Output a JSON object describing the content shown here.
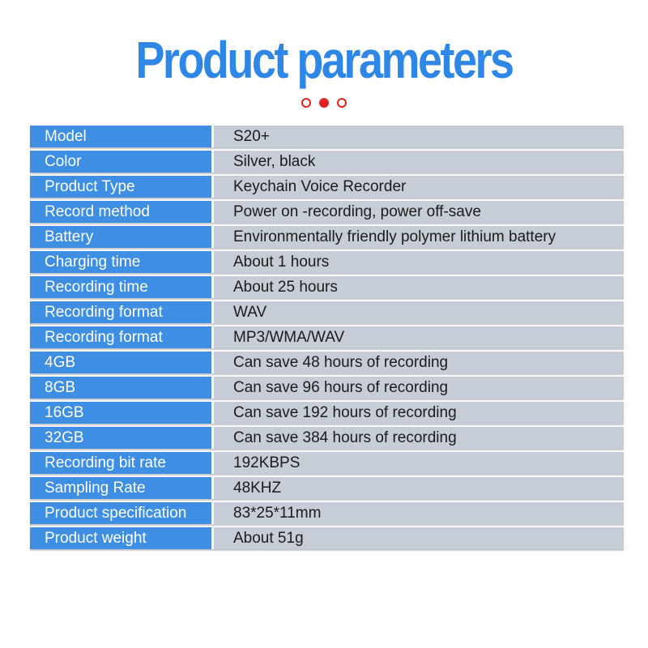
{
  "page": {
    "background": "#ffffff"
  },
  "header": {
    "title": "Product parameters",
    "title_color": "#2e87e6",
    "dots": {
      "color": "#e02222",
      "items": [
        "outline",
        "filled",
        "outline"
      ]
    }
  },
  "table": {
    "label_bg": "#3e8ee4",
    "label_color": "#ffffff",
    "value_bg": "#c7cdd7",
    "value_color": "#1b1b1b",
    "rows": [
      {
        "label": "Model",
        "value": "S20+"
      },
      {
        "label": "Color",
        "value": "Silver, black"
      },
      {
        "label": "Product Type",
        "value": "Keychain Voice Recorder"
      },
      {
        "label": "Record method",
        "value": "Power on -recording, power off-save"
      },
      {
        "label": "Battery",
        "value": "Environmentally friendly polymer lithium battery"
      },
      {
        "label": "Charging time",
        "value": "About 1 hours"
      },
      {
        "label": "Recording time",
        "value": "About 25 hours"
      },
      {
        "label": "Recording format",
        "value": "WAV"
      },
      {
        "label": "Recording format",
        "value": "MP3/WMA/WAV"
      },
      {
        "label": "4GB",
        "value": "Can save 48 hours of recording"
      },
      {
        "label": "8GB",
        "value": "Can save 96 hours of recording"
      },
      {
        "label": "16GB",
        "value": "Can save 192 hours of recording"
      },
      {
        "label": "32GB",
        "value": "Can save 384 hours of recording"
      },
      {
        "label": "Recording bit rate",
        "value": "192KBPS"
      },
      {
        "label": "Sampling Rate",
        "value": "48KHZ"
      },
      {
        "label": "Product specification",
        "value": "83*25*11mm"
      },
      {
        "label": "Product weight",
        "value": "About 51g"
      }
    ]
  }
}
